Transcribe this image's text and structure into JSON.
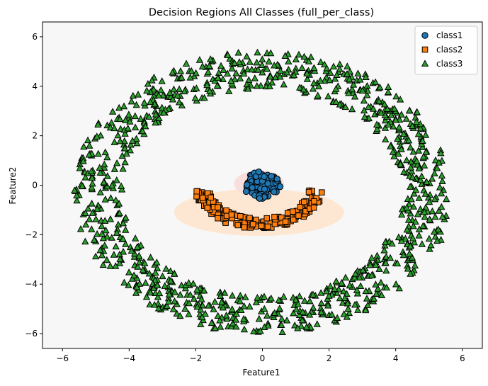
{
  "chart_data": {
    "type": "scatter",
    "title": "Decision Regions All Classes (full_per_class)",
    "xlabel": "Feature1",
    "ylabel": "Feature2",
    "xlim": [
      -6.6,
      6.6
    ],
    "ylim": [
      -6.6,
      6.6
    ],
    "xticks": [
      -6,
      -4,
      -2,
      0,
      2,
      4,
      6
    ],
    "yticks": [
      -6,
      -4,
      -2,
      0,
      2,
      4,
      6
    ],
    "grid": false,
    "legend_position": "top-right",
    "background_color": "#f7f7f7",
    "regions": [
      {
        "class": "class2",
        "color": "#fde7d2",
        "shape": "ellipse",
        "cx": -0.1,
        "cy": -1.1,
        "rx": 2.55,
        "ry": 0.95
      },
      {
        "class": "class1",
        "color": "#fadede",
        "shape": "ellipse",
        "cx": -0.1,
        "cy": 0.05,
        "rx": 0.75,
        "ry": 0.55
      }
    ],
    "series": [
      {
        "name": "class1",
        "marker": "circle",
        "color": "#1f77b4",
        "generator": {
          "kind": "disk",
          "count": 90,
          "cx": 0.0,
          "cy": 0.0,
          "r": 0.58,
          "seed": 11
        }
      },
      {
        "name": "class2",
        "marker": "square",
        "color": "#ff7f0e",
        "generator": {
          "kind": "arc",
          "count": 170,
          "cx": -0.1,
          "cy": -0.1,
          "rx": 1.7,
          "ry": 1.45,
          "angle_start": 185,
          "angle_end": 355,
          "thickness": 0.22,
          "seed": 23
        }
      },
      {
        "name": "class3",
        "marker": "triangle",
        "color": "#2ca02c",
        "generator": {
          "kind": "ring",
          "count": 1000,
          "cx": 0.0,
          "cy": -0.3,
          "r_inner": 4.2,
          "r_outer": 5.7,
          "seed": 37
        }
      }
    ]
  }
}
